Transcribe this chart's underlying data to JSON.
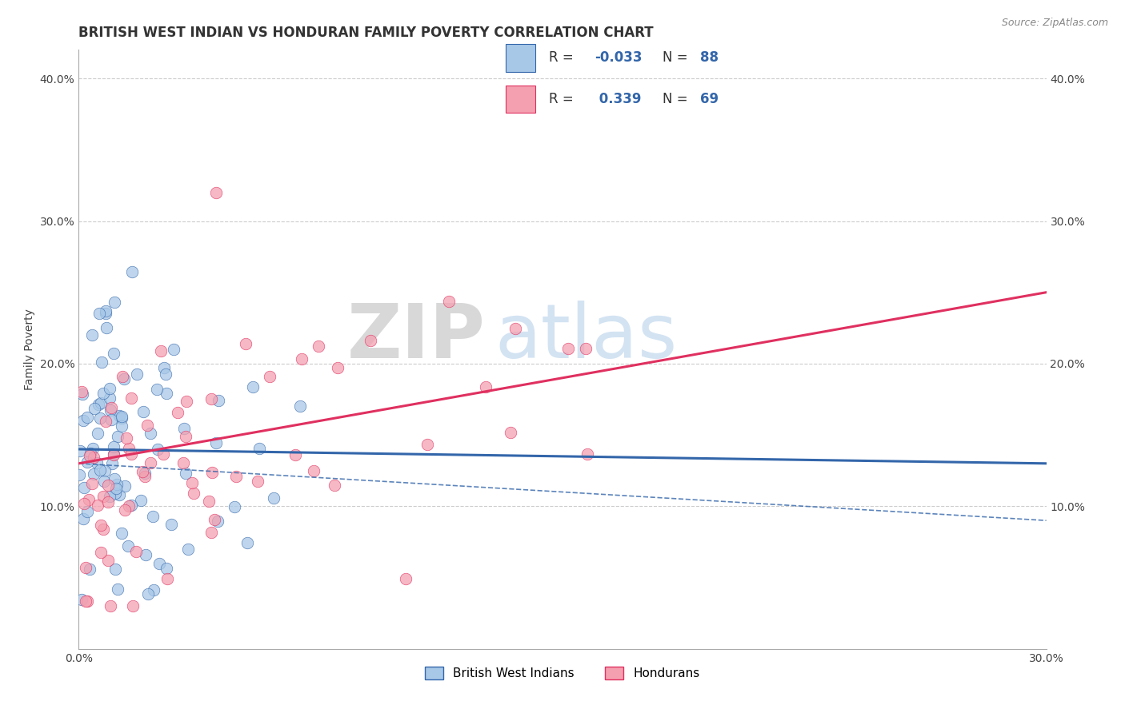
{
  "title": "BRITISH WEST INDIAN VS HONDURAN FAMILY POVERTY CORRELATION CHART",
  "source": "Source: ZipAtlas.com",
  "xlabel_blue": "British West Indians",
  "xlabel_pink": "Hondurans",
  "ylabel": "Family Poverty",
  "xlim": [
    0.0,
    0.3
  ],
  "ylim": [
    0.0,
    0.42
  ],
  "xticks": [
    0.0,
    0.05,
    0.1,
    0.15,
    0.2,
    0.25,
    0.3
  ],
  "xtick_labels": [
    "0.0%",
    "",
    "",
    "",
    "",
    "",
    "30.0%"
  ],
  "yticks": [
    0.0,
    0.1,
    0.2,
    0.3,
    0.4
  ],
  "ytick_labels": [
    "",
    "10.0%",
    "20.0%",
    "30.0%",
    "40.0%"
  ],
  "blue_R": -0.033,
  "blue_N": 88,
  "pink_R": 0.339,
  "pink_N": 69,
  "blue_color": "#A8C8E8",
  "pink_color": "#F4A0B0",
  "blue_line_color": "#3366AA",
  "pink_line_color": "#E03060",
  "watermark_zip": "ZIP",
  "watermark_atlas": "atlas",
  "background_color": "#FFFFFF",
  "grid_color": "#CCCCCC",
  "title_fontsize": 12,
  "axis_label_fontsize": 10,
  "tick_fontsize": 10,
  "legend_fontsize": 12
}
